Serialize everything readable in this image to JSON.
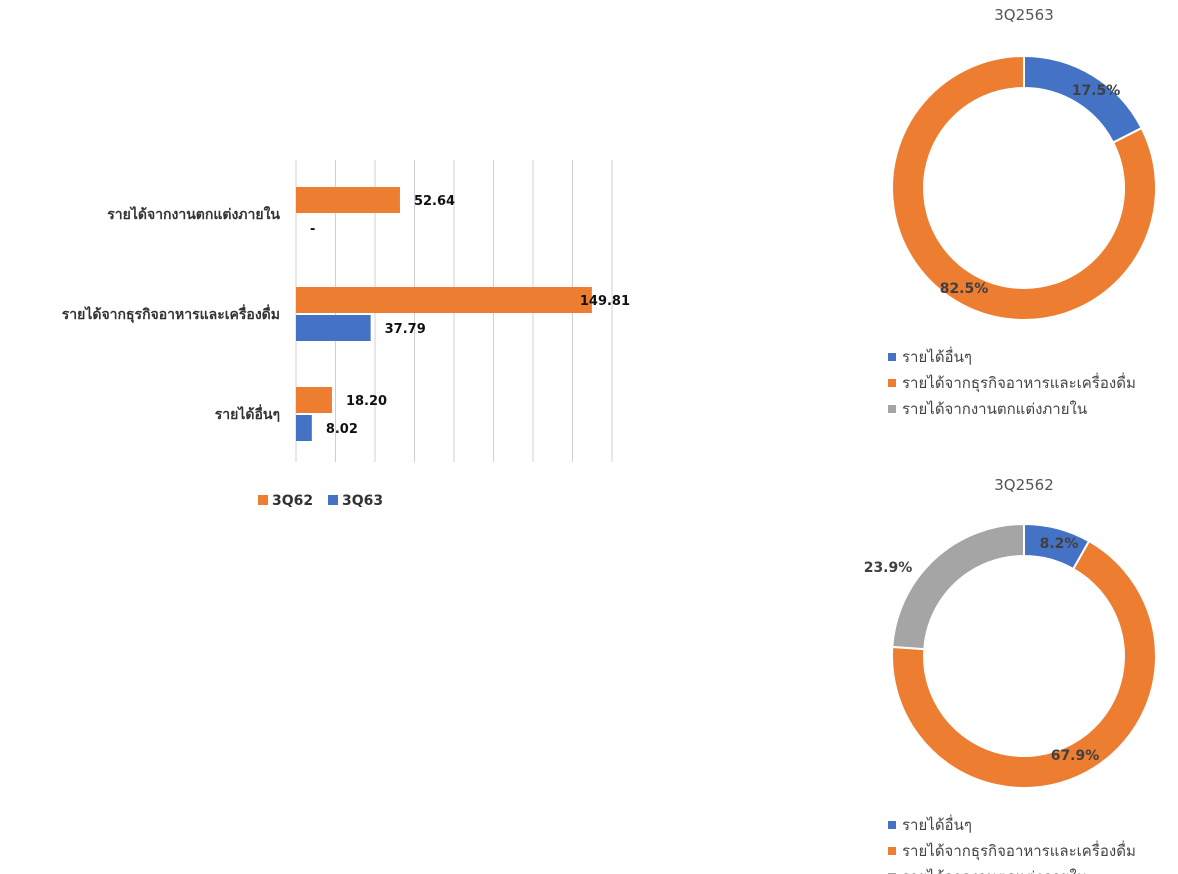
{
  "chart_data": [
    {
      "type": "bar",
      "orientation": "horizontal",
      "categories": [
        "รายได้จากงานตกแต่งภายใน",
        "รายได้จากธุรกิจอาหารและเครื่องดื่ม",
        "รายได้อื่นๆ"
      ],
      "series": [
        {
          "name": "3Q62",
          "color": "#ED7D31",
          "values": [
            52.64,
            149.81,
            18.2
          ],
          "labels": [
            "52.64",
            "149.81",
            "18.20"
          ]
        },
        {
          "name": "3Q63",
          "color": "#4472C4",
          "values": [
            0,
            37.79,
            8.02
          ],
          "labels": [
            "-",
            "37.79",
            "8.02"
          ]
        }
      ],
      "xlim": [
        0,
        160
      ],
      "grid": true,
      "legend": "bottom"
    },
    {
      "type": "pie",
      "variant": "donut",
      "title": "3Q2563",
      "slices": [
        {
          "name": "รายได้อื่นๆ",
          "value": 17.5,
          "label": "17.5%",
          "color": "#4472C4"
        },
        {
          "name": "รายได้จากธุรกิจอาหารและเครื่องดื่ม",
          "value": 82.5,
          "label": "82.5%",
          "color": "#ED7D31"
        },
        {
          "name": "รายได้จากงานตกแต่งภายใน",
          "value": 0,
          "label": "",
          "color": "#A5A5A5"
        }
      ],
      "legend": "bottom"
    },
    {
      "type": "pie",
      "variant": "donut",
      "title": "3Q2562",
      "slices": [
        {
          "name": "รายได้อื่นๆ",
          "value": 8.2,
          "label": "8.2%",
          "color": "#4472C4"
        },
        {
          "name": "รายได้จากธุรกิจอาหารและเครื่องดื่ม",
          "value": 67.9,
          "label": "67.9%",
          "color": "#ED7D31"
        },
        {
          "name": "รายได้จากงานตกแต่งภายใน",
          "value": 23.9,
          "label": "23.9%",
          "color": "#A5A5A5"
        }
      ],
      "legend": "bottom"
    }
  ]
}
